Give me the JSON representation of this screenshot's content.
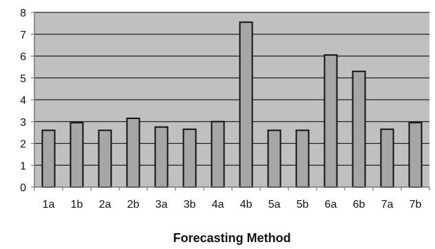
{
  "chart_data": {
    "type": "bar",
    "title": "",
    "xlabel": "Forecasting Method",
    "ylabel": "",
    "categories": [
      "1a",
      "1b",
      "2a",
      "2b",
      "3a",
      "3b",
      "4a",
      "4b",
      "5a",
      "5b",
      "6a",
      "6b",
      "7a",
      "7b"
    ],
    "values": [
      2.6,
      2.95,
      2.6,
      3.15,
      2.75,
      2.65,
      3.0,
      7.55,
      2.6,
      2.6,
      6.05,
      5.3,
      2.65,
      2.95
    ],
    "ylim": [
      0,
      8
    ],
    "yticks": [
      "0",
      "1",
      "2",
      "3",
      "4",
      "5",
      "6",
      "7",
      "8"
    ],
    "grid": true,
    "legend": "none",
    "colors": {
      "plot_background": "#c0c0c0",
      "bar_fill": "#a6a6a6",
      "bar_stroke": "#111111",
      "gridline": "#222222",
      "axis": "#777777"
    }
  }
}
